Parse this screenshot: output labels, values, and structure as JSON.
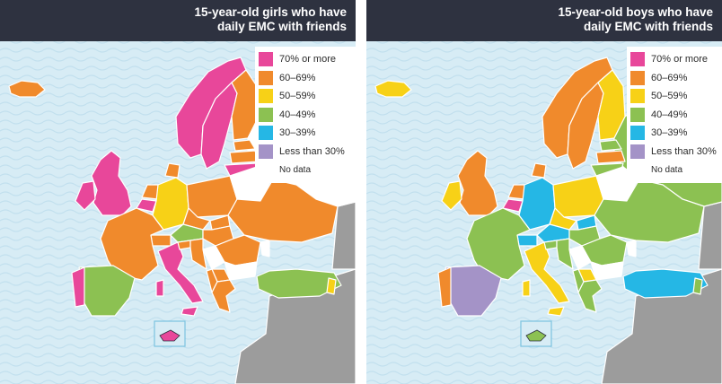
{
  "panels": [
    {
      "title_line1": "15-year-old girls who have",
      "title_line2": "daily EMC with friends"
    },
    {
      "title_line1": "15-year-old boys who have",
      "title_line2": "daily EMC with friends"
    }
  ],
  "legend": [
    {
      "label": "70% or more",
      "color": "#e8479a"
    },
    {
      "label": "60–69%",
      "color": "#f08a2c"
    },
    {
      "label": "50–59%",
      "color": "#f7d117"
    },
    {
      "label": "40–49%",
      "color": "#8cc152"
    },
    {
      "label": "30–39%",
      "color": "#25b7e5"
    },
    {
      "label": "Less than 30%",
      "color": "#a493c7"
    },
    {
      "label": "No data",
      "color": "#ffffff"
    }
  ],
  "colors": {
    "sea": "#d7ecf5",
    "wave": "#c2e0ee",
    "outside_region": "#9c9c9c",
    "header": "#2e3240",
    "border": "#ffffff"
  }
}
